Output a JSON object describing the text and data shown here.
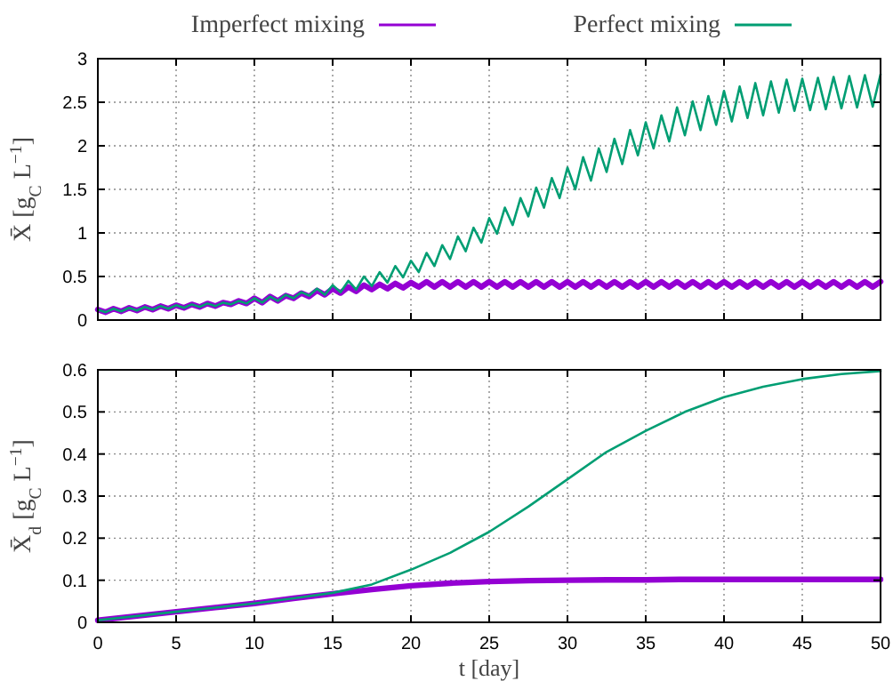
{
  "chart_data": [
    {
      "type": "line",
      "ylabel": "X̄ [g$_{C}$ L$^{−1}$]",
      "legend": "top",
      "grid": true,
      "tick_labels": "y",
      "line_style": "solid",
      "marker": "none",
      "x": [
        0,
        0.5,
        1,
        1.5,
        2,
        2.5,
        3,
        3.5,
        4,
        4.5,
        5,
        5.5,
        6,
        6.5,
        7,
        7.5,
        8,
        8.5,
        9,
        9.5,
        10,
        10.5,
        11,
        11.5,
        12,
        12.5,
        13,
        13.5,
        14,
        14.5,
        15,
        15.5,
        16,
        16.5,
        17,
        17.5,
        18,
        18.5,
        19,
        19.5,
        20,
        20.5,
        21,
        21.5,
        22,
        22.5,
        23,
        23.5,
        24,
        24.5,
        25,
        25.5,
        26,
        26.5,
        27,
        27.5,
        28,
        28.5,
        29,
        29.5,
        30,
        30.5,
        31,
        31.5,
        32,
        32.5,
        33,
        33.5,
        34,
        34.5,
        35,
        35.5,
        36,
        36.5,
        37,
        37.5,
        38,
        38.5,
        39,
        39.5,
        40,
        40.5,
        41,
        41.5,
        42,
        42.5,
        43,
        43.5,
        44,
        44.5,
        45,
        45.5,
        46,
        46.5,
        47,
        47.5,
        48,
        48.5,
        49,
        49.5,
        50
      ],
      "xlim": [
        0,
        50
      ],
      "xticks": [
        0,
        5,
        10,
        15,
        20,
        25,
        30,
        35,
        40,
        45,
        50
      ],
      "ylim": [
        0,
        3
      ],
      "yticks": [
        0,
        0.5,
        1,
        1.5,
        2,
        2.5,
        3
      ],
      "series": [
        {
          "name": "Imperfect mixing",
          "color": "#9400d3",
          "values": [
            0.12,
            0.09,
            0.13,
            0.1,
            0.14,
            0.11,
            0.15,
            0.12,
            0.16,
            0.13,
            0.17,
            0.14,
            0.18,
            0.15,
            0.19,
            0.16,
            0.2,
            0.18,
            0.22,
            0.19,
            0.25,
            0.2,
            0.27,
            0.22,
            0.28,
            0.25,
            0.31,
            0.27,
            0.34,
            0.29,
            0.36,
            0.31,
            0.38,
            0.33,
            0.4,
            0.35,
            0.41,
            0.36,
            0.42,
            0.37,
            0.43,
            0.38,
            0.44,
            0.38,
            0.44,
            0.38,
            0.44,
            0.38,
            0.44,
            0.38,
            0.44,
            0.38,
            0.44,
            0.38,
            0.44,
            0.38,
            0.44,
            0.38,
            0.44,
            0.38,
            0.44,
            0.38,
            0.44,
            0.38,
            0.44,
            0.38,
            0.44,
            0.38,
            0.44,
            0.38,
            0.44,
            0.38,
            0.44,
            0.38,
            0.44,
            0.38,
            0.44,
            0.38,
            0.44,
            0.38,
            0.44,
            0.38,
            0.44,
            0.38,
            0.44,
            0.38,
            0.44,
            0.38,
            0.44,
            0.38,
            0.44,
            0.38,
            0.44,
            0.38,
            0.44,
            0.38,
            0.44,
            0.38,
            0.44,
            0.38,
            0.44
          ]
        },
        {
          "name": "Perfect mixing",
          "color": "#009e73",
          "values": [
            0.12,
            0.09,
            0.13,
            0.1,
            0.14,
            0.11,
            0.15,
            0.12,
            0.16,
            0.13,
            0.17,
            0.14,
            0.18,
            0.15,
            0.19,
            0.16,
            0.2,
            0.18,
            0.22,
            0.19,
            0.25,
            0.2,
            0.27,
            0.22,
            0.29,
            0.25,
            0.32,
            0.28,
            0.36,
            0.29,
            0.4,
            0.32,
            0.45,
            0.35,
            0.5,
            0.39,
            0.55,
            0.43,
            0.62,
            0.49,
            0.68,
            0.55,
            0.77,
            0.62,
            0.86,
            0.7,
            0.96,
            0.79,
            1.06,
            0.89,
            1.17,
            0.99,
            1.29,
            1.09,
            1.4,
            1.19,
            1.52,
            1.29,
            1.63,
            1.4,
            1.75,
            1.5,
            1.87,
            1.6,
            1.97,
            1.7,
            2.08,
            1.79,
            2.18,
            1.89,
            2.27,
            1.97,
            2.35,
            2.05,
            2.44,
            2.12,
            2.51,
            2.18,
            2.57,
            2.24,
            2.63,
            2.28,
            2.68,
            2.32,
            2.72,
            2.35,
            2.74,
            2.38,
            2.76,
            2.4,
            2.77,
            2.41,
            2.78,
            2.42,
            2.79,
            2.43,
            2.8,
            2.44,
            2.81,
            2.45,
            2.82
          ]
        }
      ]
    },
    {
      "type": "line",
      "xlabel": "t [day]",
      "ylabel": "X̄$_{d}$ [g$_{C}$ L$^{−1}$]",
      "grid": true,
      "line_style": "solid",
      "marker": "none",
      "x": [
        0,
        2.5,
        5,
        7.5,
        10,
        12.5,
        15,
        17.5,
        20,
        22.5,
        25,
        27.5,
        30,
        32.5,
        35,
        37.5,
        40,
        42.5,
        45,
        47.5,
        50
      ],
      "xlim": [
        0,
        50
      ],
      "xticks": [
        0,
        5,
        10,
        15,
        20,
        25,
        30,
        35,
        40,
        45,
        50
      ],
      "ylim": [
        0,
        0.6
      ],
      "yticks": [
        0,
        0.1,
        0.2,
        0.3,
        0.4,
        0.5,
        0.6
      ],
      "series": [
        {
          "color": "#9400d3",
          "values": [
            0.005,
            0.015,
            0.025,
            0.035,
            0.045,
            0.057,
            0.068,
            0.078,
            0.087,
            0.093,
            0.097,
            0.099,
            0.1,
            0.101,
            0.101,
            0.102,
            0.102,
            0.102,
            0.102,
            0.102,
            0.102
          ]
        },
        {
          "color": "#009e73",
          "values": [
            0.005,
            0.015,
            0.025,
            0.035,
            0.045,
            0.057,
            0.07,
            0.09,
            0.125,
            0.165,
            0.215,
            0.275,
            0.34,
            0.405,
            0.455,
            0.5,
            0.535,
            0.56,
            0.578,
            0.59,
            0.597
          ]
        }
      ]
    }
  ]
}
